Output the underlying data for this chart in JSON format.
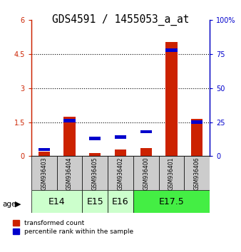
{
  "title": "GDS4591 / 1455053_a_at",
  "samples": [
    "GSM936403",
    "GSM936404",
    "GSM936405",
    "GSM936402",
    "GSM936400",
    "GSM936401",
    "GSM936406"
  ],
  "red_values": [
    0.2,
    1.75,
    0.15,
    0.3,
    0.35,
    5.05,
    1.65
  ],
  "blue_pct": [
    5,
    26,
    13,
    14,
    18,
    78,
    25
  ],
  "ylim_left": [
    0,
    6
  ],
  "ylim_right": [
    0,
    100
  ],
  "yticks_left": [
    0,
    1.5,
    3,
    4.5,
    6
  ],
  "yticks_right": [
    0,
    25,
    50,
    75,
    100
  ],
  "ytick_labels_left": [
    "0",
    "1.5",
    "3",
    "4.5",
    "6"
  ],
  "ytick_labels_right": [
    "0",
    "25",
    "50",
    "75",
    "100%"
  ],
  "left_axis_color": "#cc2200",
  "right_axis_color": "#0000cc",
  "bar_width": 0.45,
  "blue_bar_height": 0.15,
  "bg_color": "#ffffff",
  "sample_bg_color": "#cccccc",
  "age_groups_info": [
    {
      "label": "E14",
      "start": 0,
      "end": 1,
      "color": "#ccffcc"
    },
    {
      "label": "E15",
      "start": 2,
      "end": 2,
      "color": "#ccffcc"
    },
    {
      "label": "E16",
      "start": 3,
      "end": 3,
      "color": "#ccffcc"
    },
    {
      "label": "E17.5",
      "start": 4,
      "end": 6,
      "color": "#44ee44"
    }
  ],
  "age_label_fontsize": 9,
  "tick_label_fontsize": 7,
  "title_fontsize": 10.5
}
